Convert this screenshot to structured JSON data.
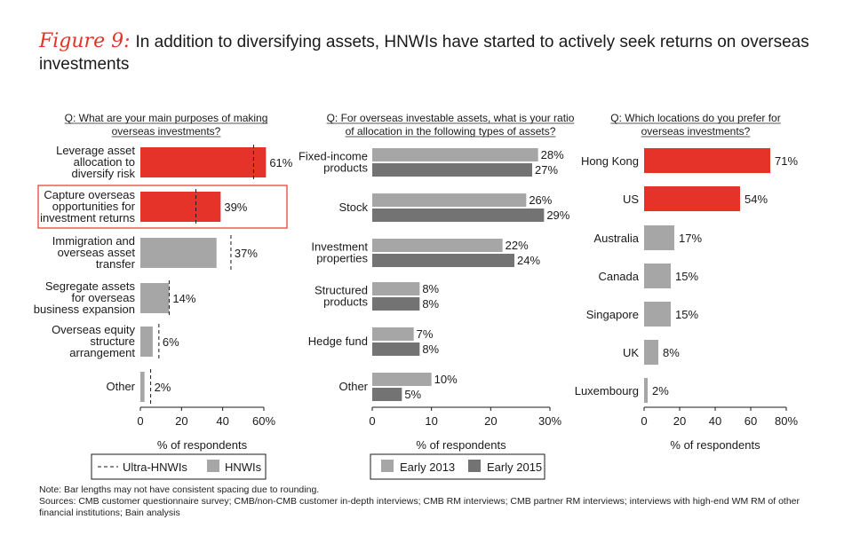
{
  "header": {
    "figure_label": "Figure 9:",
    "title": "In addition to diversifying assets, HNWIs have started to actively seek returns on overseas investments"
  },
  "colors": {
    "accent": "#e63329",
    "gray_light": "#a6a6a6",
    "gray_dark": "#737373",
    "text": "#1a1a1a"
  },
  "chart_data": [
    {
      "type": "bar",
      "orientation": "horizontal",
      "question": "Q: What are your main purposes of making overseas investments?",
      "question_lines": [
        "Q: What are your main purposes of making",
        "overseas investments?"
      ],
      "categories": [
        [
          "Leverage asset",
          "allocation to",
          "diversify risk"
        ],
        [
          "Capture overseas",
          "opportunities for",
          "investment returns"
        ],
        [
          "Immigration and",
          "overseas asset",
          "transfer"
        ],
        [
          "Segregate assets",
          "for overseas",
          "business expansion"
        ],
        [
          "Overseas equity",
          "structure",
          "arrangement"
        ],
        [
          "Other"
        ]
      ],
      "series": [
        {
          "name": "HNWIs",
          "values": [
            61,
            39,
            37,
            14,
            6,
            2
          ],
          "labels": [
            "61%",
            "39%",
            "37%",
            "14%",
            "6%",
            "2%"
          ]
        },
        {
          "name": "Ultra-HNWIs",
          "values": [
            55,
            27,
            44,
            14,
            9,
            5
          ],
          "style": "dashed marker"
        }
      ],
      "highlight": [
        0,
        1
      ],
      "highlight_box": 1,
      "xlim": [
        0,
        60
      ],
      "xticks": [
        "0",
        "20",
        "40",
        "60%"
      ],
      "xlabel": "% of respondents",
      "legend": [
        "Ultra-HNWIs",
        "HNWIs"
      ]
    },
    {
      "type": "bar",
      "orientation": "horizontal",
      "question": "Q: For overseas investable assets, what is your ratio of allocation in the following types of assets?",
      "question_lines": [
        "Q: For overseas investable assets, what is your ratio",
        "of allocation in the following types of assets?"
      ],
      "categories": [
        [
          "Fixed-income",
          "products"
        ],
        [
          "Stock"
        ],
        [
          "Investment",
          "properties"
        ],
        [
          "Structured",
          "products"
        ],
        [
          "Hedge fund"
        ],
        [
          "Other"
        ]
      ],
      "series": [
        {
          "name": "Early 2013",
          "values": [
            28,
            26,
            22,
            8,
            7,
            10
          ],
          "labels": [
            "28%",
            "26%",
            "22%",
            "8%",
            "7%",
            "10%"
          ]
        },
        {
          "name": "Early 2015",
          "values": [
            27,
            29,
            24,
            8,
            8,
            5
          ],
          "labels": [
            "27%",
            "29%",
            "24%",
            "8%",
            "8%",
            "5%"
          ]
        }
      ],
      "xlim": [
        0,
        30
      ],
      "xticks": [
        "0",
        "10",
        "20",
        "30%"
      ],
      "xlabel": "% of respondents",
      "legend": [
        "Early 2013",
        "Early 2015"
      ]
    },
    {
      "type": "bar",
      "orientation": "horizontal",
      "question": "Q: Which locations do you prefer for overseas investments?",
      "question_lines": [
        "Q: Which locations do you prefer for",
        "overseas investments?"
      ],
      "categories": [
        [
          "Hong Kong"
        ],
        [
          "US"
        ],
        [
          "Australia"
        ],
        [
          "Canada"
        ],
        [
          "Singapore"
        ],
        [
          "UK"
        ],
        [
          "Luxembourg"
        ]
      ],
      "series": [
        {
          "name": "Respondents",
          "values": [
            71,
            54,
            17,
            15,
            15,
            8,
            2
          ],
          "labels": [
            "71%",
            "54%",
            "17%",
            "15%",
            "15%",
            "8%",
            "2%"
          ]
        }
      ],
      "highlight": [
        0,
        1
      ],
      "xlim": [
        0,
        80
      ],
      "xticks": [
        "0",
        "20",
        "40",
        "60",
        "80%"
      ],
      "xlabel": "% of respondents"
    }
  ],
  "notes": [
    "Note: Bar lengths may not have consistent spacing due to rounding.",
    "Sources: CMB customer questionnaire survey; CMB/non-CMB customer in-depth interviews; CMB RM interviews; CMB partner RM interviews; interviews with high-end WM RM of other financial institutions; Bain analysis"
  ]
}
